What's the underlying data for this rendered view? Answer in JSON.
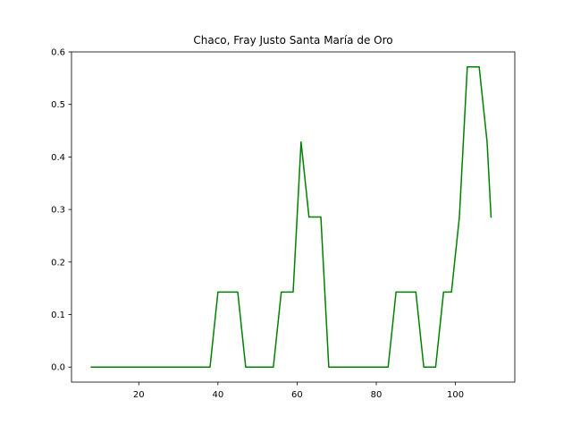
{
  "chart_data": {
    "type": "line",
    "title": "Chaco, Fray Justo Santa María de Oro",
    "xlabel": "",
    "ylabel": "",
    "xlim": [
      3,
      115
    ],
    "ylim": [
      -0.0286,
      0.6
    ],
    "xticks": [
      20,
      40,
      60,
      80,
      100
    ],
    "yticks": [
      0.0,
      0.1,
      0.2,
      0.3,
      0.4,
      0.5,
      0.6
    ],
    "xtick_labels": [
      "20",
      "40",
      "60",
      "80",
      "100"
    ],
    "ytick_labels": [
      "0.0",
      "0.1",
      "0.2",
      "0.3",
      "0.4",
      "0.5",
      "0.6"
    ],
    "grid": false,
    "legend": "none",
    "series": [
      {
        "color": "#008000",
        "x": [
          8,
          38,
          40,
          45,
          47,
          54,
          56,
          59,
          61,
          63,
          66,
          68,
          83,
          85,
          90,
          92,
          95,
          97,
          99,
          101,
          103,
          106,
          108,
          109
        ],
        "y": [
          0,
          0,
          0.1429,
          0.1429,
          0,
          0,
          0.1429,
          0.1429,
          0.4286,
          0.2857,
          0.2857,
          0,
          0,
          0.1429,
          0.1429,
          0,
          0,
          0.1429,
          0.1429,
          0.2857,
          0.5714,
          0.5714,
          0.4286,
          0.2857
        ]
      }
    ]
  }
}
